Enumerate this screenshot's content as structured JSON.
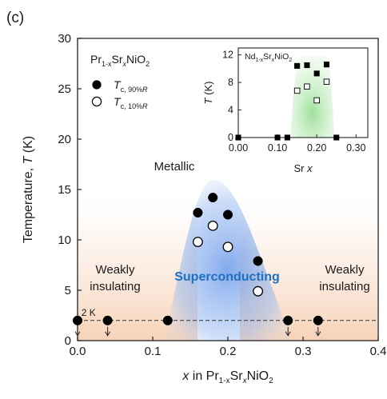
{
  "panel_label": "(c)",
  "chart_data": [
    {
      "type": "scatter",
      "xlabel": {
        "pre": "x",
        "mid": " in Pr",
        "sub1": "1-x",
        "mid2": "Sr",
        "subx": "x",
        "post": "NiO",
        "sub2": "2"
      },
      "ylabel": {
        "pre": "Temperature, ",
        "sym": "T",
        "post": " (K)"
      },
      "xlim": [
        0,
        0.4
      ],
      "ylim": [
        0,
        30
      ],
      "xticks": [
        0.0,
        0.1,
        0.2,
        0.3,
        0.4
      ],
      "xtick_labels": [
        "0.0",
        "0.1",
        "0.2",
        "0.3",
        "0.4"
      ],
      "yticks": [
        0,
        5,
        10,
        15,
        20,
        25,
        30
      ],
      "ytick_labels": [
        "0",
        "5",
        "10",
        "15",
        "20",
        "25",
        "30"
      ],
      "compound": {
        "a": "Pr",
        "s1": "1-x",
        "b": "Sr",
        "s2": "x",
        "c": "NiO",
        "s3": "2"
      },
      "legend": [
        {
          "sym": "T",
          "sub": "c, 90%",
          "subR": "R",
          "marker": "filled"
        },
        {
          "sym": "T",
          "sub": "c, 10%",
          "subR": "R",
          "marker": "open"
        }
      ],
      "series": [
        {
          "name": "Tc,90%R",
          "marker": "filled-circle",
          "x": [
            0.0,
            0.04,
            0.12,
            0.16,
            0.18,
            0.2,
            0.24,
            0.28,
            0.32
          ],
          "y": [
            2.0,
            2.0,
            2.0,
            12.7,
            14.2,
            12.5,
            7.9,
            2.0,
            2.0
          ]
        },
        {
          "name": "Tc,10%R",
          "marker": "open-circle",
          "x": [
            0.16,
            0.18,
            0.2,
            0.24
          ],
          "y": [
            9.8,
            11.4,
            9.3,
            4.9
          ]
        }
      ],
      "below_limit_points": [
        0.0,
        0.04,
        0.28,
        0.32
      ],
      "reference_line": {
        "y": 2,
        "label": "2 K"
      },
      "region_labels": {
        "metallic": "Metallic",
        "weakly_left": [
          "Weakly",
          "insulating"
        ],
        "weakly_right": [
          "Weakly",
          "insulating"
        ],
        "superconducting": "Superconducting"
      },
      "colors": {
        "sc_region": "#6f9fe8",
        "insulating_region": "#f6c9a8",
        "sc_label": "#1f6fc0",
        "inset_sc_region": "#8fd98a"
      }
    },
    {
      "type": "scatter",
      "title": {
        "a": "Nd",
        "s1": "1-x",
        "b": "Sr",
        "s2": "x",
        "c": "NiO",
        "s3": "2"
      },
      "xlabel": {
        "pre": "Sr ",
        "sym": "x"
      },
      "ylabel": {
        "sym": "T",
        "post": " (K)"
      },
      "xlim": [
        0,
        0.33
      ],
      "ylim": [
        0,
        13
      ],
      "xticks": [
        0.0,
        0.1,
        0.2,
        0.3
      ],
      "xtick_labels": [
        "0.00",
        "0.10",
        "0.20",
        "0.30"
      ],
      "yticks": [
        0,
        4,
        8,
        12
      ],
      "ytick_labels": [
        "0",
        "4",
        "8",
        "12"
      ],
      "series": [
        {
          "name": "filled-square",
          "x": [
            0.0,
            0.1,
            0.125,
            0.15,
            0.175,
            0.2,
            0.225,
            0.25
          ],
          "y": [
            0.0,
            0.0,
            0.0,
            10.4,
            10.5,
            9.3,
            10.6,
            0.0
          ]
        },
        {
          "name": "open-square",
          "x": [
            0.15,
            0.175,
            0.2,
            0.225
          ],
          "y": [
            6.8,
            7.4,
            5.4,
            8.1
          ]
        }
      ]
    }
  ]
}
